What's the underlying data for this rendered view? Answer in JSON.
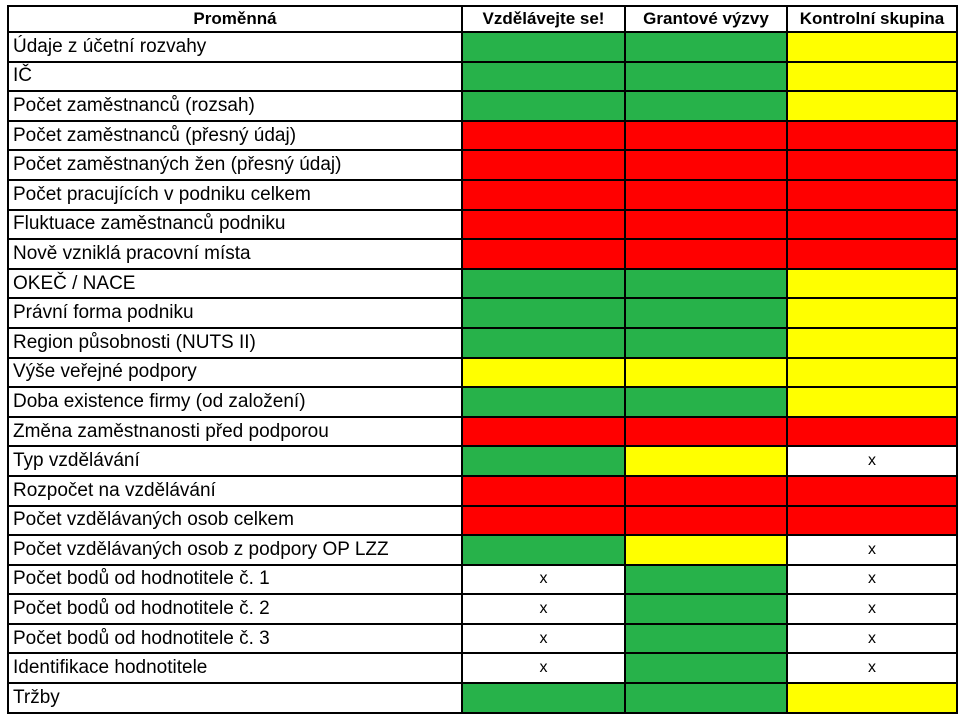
{
  "colors": {
    "G": "#27b24a",
    "R": "#ff0000",
    "Y": "#ffff00",
    "W": "#ffffff"
  },
  "headers": [
    "Proměnná",
    "Vzdělávejte se!",
    "Grantové výzvy",
    "Kontrolní skupina"
  ],
  "rows": [
    {
      "label": "Údaje z účetní rozvahy",
      "cells": [
        {
          "c": "G",
          "t": ""
        },
        {
          "c": "G",
          "t": ""
        },
        {
          "c": "Y",
          "t": ""
        }
      ]
    },
    {
      "label": "IČ",
      "cells": [
        {
          "c": "G",
          "t": ""
        },
        {
          "c": "G",
          "t": ""
        },
        {
          "c": "Y",
          "t": ""
        }
      ]
    },
    {
      "label": "Počet zaměstnanců (rozsah)",
      "cells": [
        {
          "c": "G",
          "t": ""
        },
        {
          "c": "G",
          "t": ""
        },
        {
          "c": "Y",
          "t": ""
        }
      ]
    },
    {
      "label": "Počet zaměstnanců (přesný údaj)",
      "cells": [
        {
          "c": "R",
          "t": ""
        },
        {
          "c": "R",
          "t": ""
        },
        {
          "c": "R",
          "t": ""
        }
      ]
    },
    {
      "label": "Počet zaměstnaných žen (přesný údaj)",
      "cells": [
        {
          "c": "R",
          "t": ""
        },
        {
          "c": "R",
          "t": ""
        },
        {
          "c": "R",
          "t": ""
        }
      ]
    },
    {
      "label": "Počet pracujících v podniku celkem",
      "cells": [
        {
          "c": "R",
          "t": ""
        },
        {
          "c": "R",
          "t": ""
        },
        {
          "c": "R",
          "t": ""
        }
      ]
    },
    {
      "label": "Fluktuace zaměstnanců podniku",
      "cells": [
        {
          "c": "R",
          "t": ""
        },
        {
          "c": "R",
          "t": ""
        },
        {
          "c": "R",
          "t": ""
        }
      ]
    },
    {
      "label": "Nově vzniklá pracovní místa",
      "cells": [
        {
          "c": "R",
          "t": ""
        },
        {
          "c": "R",
          "t": ""
        },
        {
          "c": "R",
          "t": ""
        }
      ]
    },
    {
      "label": "OKEČ / NACE",
      "cells": [
        {
          "c": "G",
          "t": ""
        },
        {
          "c": "G",
          "t": ""
        },
        {
          "c": "Y",
          "t": ""
        }
      ]
    },
    {
      "label": "Právní forma podniku",
      "cells": [
        {
          "c": "G",
          "t": ""
        },
        {
          "c": "G",
          "t": ""
        },
        {
          "c": "Y",
          "t": ""
        }
      ]
    },
    {
      "label": "Region působnosti (NUTS II)",
      "cells": [
        {
          "c": "G",
          "t": ""
        },
        {
          "c": "G",
          "t": ""
        },
        {
          "c": "Y",
          "t": ""
        }
      ]
    },
    {
      "label": "Výše veřejné podpory",
      "cells": [
        {
          "c": "Y",
          "t": ""
        },
        {
          "c": "Y",
          "t": ""
        },
        {
          "c": "Y",
          "t": ""
        }
      ]
    },
    {
      "label": "Doba existence firmy (od založení)",
      "cells": [
        {
          "c": "G",
          "t": ""
        },
        {
          "c": "G",
          "t": ""
        },
        {
          "c": "Y",
          "t": ""
        }
      ]
    },
    {
      "label": "Změna zaměstnanosti před podporou",
      "cells": [
        {
          "c": "R",
          "t": ""
        },
        {
          "c": "R",
          "t": ""
        },
        {
          "c": "R",
          "t": ""
        }
      ]
    },
    {
      "label": "Typ vzdělávání",
      "cells": [
        {
          "c": "G",
          "t": ""
        },
        {
          "c": "Y",
          "t": ""
        },
        {
          "c": "W",
          "t": "x"
        }
      ]
    },
    {
      "label": "Rozpočet na vzdělávání",
      "cells": [
        {
          "c": "R",
          "t": ""
        },
        {
          "c": "R",
          "t": ""
        },
        {
          "c": "R",
          "t": ""
        }
      ]
    },
    {
      "label": "Počet vzdělávaných osob celkem",
      "cells": [
        {
          "c": "R",
          "t": ""
        },
        {
          "c": "R",
          "t": ""
        },
        {
          "c": "R",
          "t": ""
        }
      ]
    },
    {
      "label": "Počet vzdělávaných osob z podpory OP LZZ",
      "cells": [
        {
          "c": "G",
          "t": ""
        },
        {
          "c": "Y",
          "t": ""
        },
        {
          "c": "W",
          "t": "x"
        }
      ]
    },
    {
      "label": "Počet bodů od hodnotitele č. 1",
      "cells": [
        {
          "c": "W",
          "t": "x"
        },
        {
          "c": "G",
          "t": ""
        },
        {
          "c": "W",
          "t": "x"
        }
      ]
    },
    {
      "label": "Počet bodů od hodnotitele č. 2",
      "cells": [
        {
          "c": "W",
          "t": "x"
        },
        {
          "c": "G",
          "t": ""
        },
        {
          "c": "W",
          "t": "x"
        }
      ]
    },
    {
      "label": "Počet bodů od hodnotitele č. 3",
      "cells": [
        {
          "c": "W",
          "t": "x"
        },
        {
          "c": "G",
          "t": ""
        },
        {
          "c": "W",
          "t": "x"
        }
      ]
    },
    {
      "label": "Identifikace hodnotitele",
      "cells": [
        {
          "c": "W",
          "t": "x"
        },
        {
          "c": "G",
          "t": ""
        },
        {
          "c": "W",
          "t": "x"
        }
      ]
    },
    {
      "label": "Tržby",
      "cells": [
        {
          "c": "G",
          "t": ""
        },
        {
          "c": "G",
          "t": ""
        },
        {
          "c": "Y",
          "t": ""
        }
      ]
    }
  ]
}
